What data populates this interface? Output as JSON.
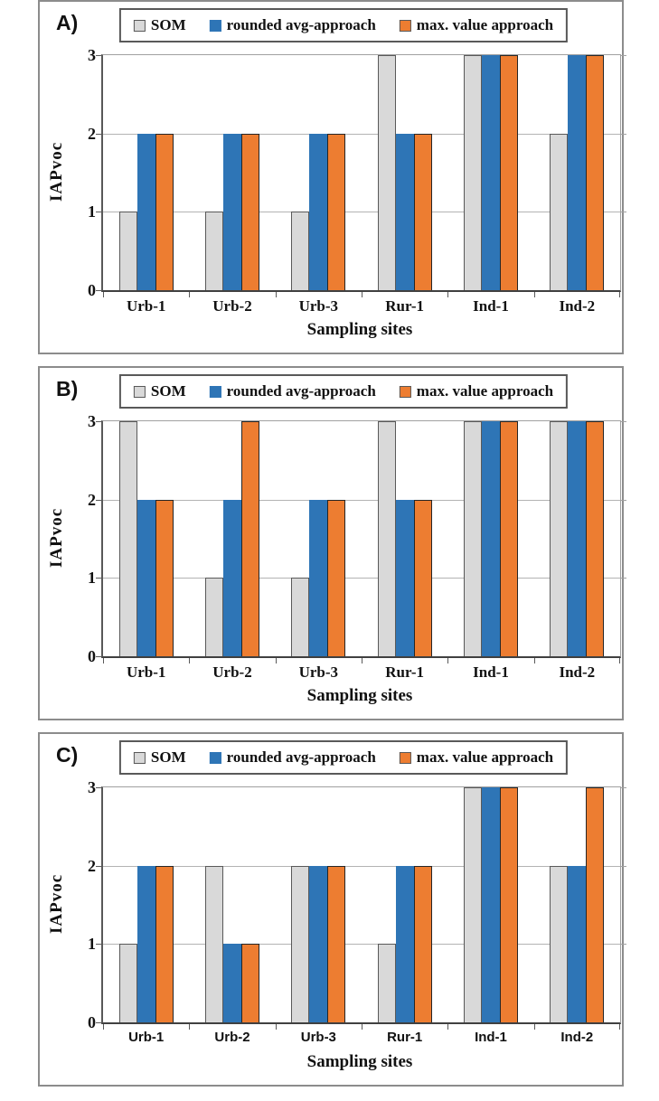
{
  "colors": {
    "som_fill": "#d9d9d9",
    "avg_fill": "#2e75b6",
    "max_fill": "#ed7d31",
    "axis": "#404040",
    "gridline": "#b3b3b3",
    "panel_border": "#8c8c8c"
  },
  "chart_data": [
    {
      "type": "bar",
      "panel_label": "A)",
      "categories": [
        "Urb-1",
        "Urb-2",
        "Urb-3",
        "Rur-1",
        "Ind-1",
        "Ind-2"
      ],
      "series": [
        {
          "name": "SOM",
          "color": "#d9d9d9",
          "border": "#595959",
          "icon": "som-swatch-icon",
          "values": [
            1,
            1,
            1,
            3,
            3,
            2
          ]
        },
        {
          "name": "rounded avg-approach",
          "color": "#2e75b6",
          "border": "#2e75b6",
          "icon": "avg-swatch-icon",
          "values": [
            2,
            2,
            2,
            2,
            3,
            3
          ]
        },
        {
          "name": "max. value approach",
          "color": "#ed7d31",
          "border": "#262626",
          "icon": "max-swatch-icon",
          "values": [
            2,
            2,
            2,
            2,
            3,
            3
          ]
        }
      ],
      "xlabel": "Sampling sites",
      "ylabel": "IAPvoc",
      "ylim": [
        0,
        3
      ],
      "yticks": [
        0,
        1,
        2,
        3
      ],
      "grid": true,
      "legend_position": "top"
    },
    {
      "type": "bar",
      "panel_label": "B)",
      "categories": [
        "Urb-1",
        "Urb-2",
        "Urb-3",
        "Rur-1",
        "Ind-1",
        "Ind-2"
      ],
      "series": [
        {
          "name": "SOM",
          "color": "#d9d9d9",
          "border": "#595959",
          "icon": "som-swatch-icon",
          "values": [
            3,
            1,
            1,
            3,
            3,
            3
          ]
        },
        {
          "name": "rounded avg-approach",
          "color": "#2e75b6",
          "border": "#2e75b6",
          "icon": "avg-swatch-icon",
          "values": [
            2,
            2,
            2,
            2,
            3,
            3
          ]
        },
        {
          "name": "max. value approach",
          "color": "#ed7d31",
          "border": "#262626",
          "icon": "max-swatch-icon",
          "values": [
            2,
            3,
            2,
            2,
            3,
            3
          ]
        }
      ],
      "xlabel": "Sampling sites",
      "ylabel": "IAPvoc",
      "ylim": [
        0,
        3
      ],
      "yticks": [
        0,
        1,
        2,
        3
      ],
      "grid": true,
      "legend_position": "top"
    },
    {
      "type": "bar",
      "panel_label": "C)",
      "categories": [
        "Urb-1",
        "Urb-2",
        "Urb-3",
        "Rur-1",
        "Ind-1",
        "Ind-2"
      ],
      "series": [
        {
          "name": "SOM",
          "color": "#d9d9d9",
          "border": "#595959",
          "icon": "som-swatch-icon",
          "values": [
            1,
            2,
            2,
            1,
            3,
            2
          ]
        },
        {
          "name": "rounded avg-approach",
          "color": "#2e75b6",
          "border": "#2e75b6",
          "icon": "avg-swatch-icon",
          "values": [
            2,
            1,
            2,
            2,
            3,
            2
          ]
        },
        {
          "name": "max. value approach",
          "color": "#ed7d31",
          "border": "#262626",
          "icon": "max-swatch-icon",
          "values": [
            2,
            1,
            2,
            2,
            3,
            3
          ]
        }
      ],
      "xlabel": "Sampling sites",
      "ylabel": "IAPvoc",
      "ylim": [
        0,
        3
      ],
      "yticks": [
        0,
        1,
        2,
        3
      ],
      "grid": true,
      "legend_position": "top"
    }
  ]
}
